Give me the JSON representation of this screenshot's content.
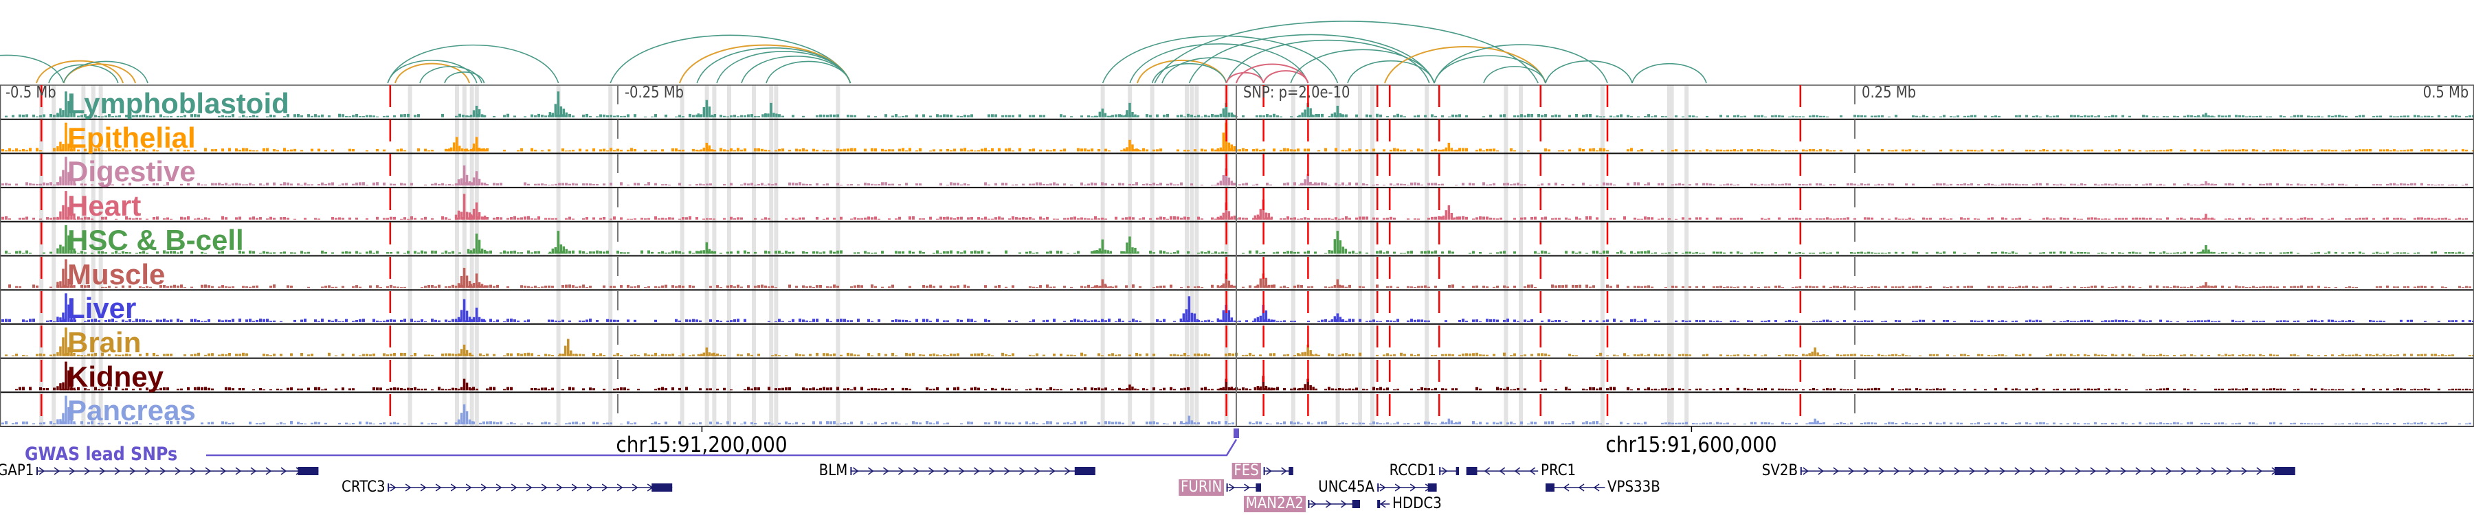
{
  "colors": {
    "arc_teal": "#4a9a88",
    "arc_orange": "#e0a030",
    "arc_pink": "#d9667a",
    "highlight_column": "#e3e3e3",
    "lead_snp_line": "#ff0000",
    "gwas": "#6655cc",
    "gene": "#1a1a6e",
    "gene_highlight": "#c487a8"
  },
  "axis": {
    "labels": [
      {
        "text": "-0.5 Mb",
        "kb": -500
      },
      {
        "text": "-0.25 Mb",
        "kb": -250
      },
      {
        "text": "SNP: p=2.0e-10",
        "kb": 0
      },
      {
        "text": "0.25 Mb",
        "kb": 250
      },
      {
        "text": "0.5 Mb",
        "kb": 500
      }
    ],
    "chrom_ticks": [
      {
        "text": "chr15:91,200,000",
        "kb": -216
      },
      {
        "text": "chr15:91,600,000",
        "kb": 184
      }
    ]
  },
  "gwas": {
    "label": "GWAS lead SNPs",
    "snp_kb": 0
  },
  "lead_snp_lines_kb": [
    -483,
    -342,
    -4,
    11,
    29,
    57,
    62,
    82,
    123,
    150,
    228
  ],
  "highlight_columns_kb": [
    -483,
    -478,
    -466,
    -462,
    -459,
    -334,
    -315,
    -312,
    -309,
    -307,
    -274,
    -253,
    -224,
    -214,
    -211,
    -205,
    -195,
    -188,
    -186,
    -161,
    -54,
    -43,
    -34,
    -20,
    -18,
    -16,
    -4,
    23,
    41,
    50,
    55,
    77,
    109,
    115,
    148,
    175,
    176,
    182
  ],
  "tracks": [
    {
      "name": "Lymphoblastoid",
      "color": "#4a9a88",
      "peaks": [
        [
          -473,
          0.9
        ],
        [
          -307,
          0.4
        ],
        [
          -274,
          0.9
        ],
        [
          -214,
          0.6
        ],
        [
          -188,
          0.5
        ],
        [
          -54,
          0.3
        ],
        [
          -43,
          0.5
        ],
        [
          -4,
          0.5
        ],
        [
          29,
          0.5
        ],
        [
          41,
          0.4
        ],
        [
          392,
          0.15
        ]
      ]
    },
    {
      "name": "Epithelial",
      "color": "#ff9900",
      "peaks": [
        [
          -473,
          1.0
        ],
        [
          -315,
          0.5
        ],
        [
          -307,
          0.5
        ],
        [
          -214,
          0.3
        ],
        [
          -43,
          0.4
        ],
        [
          -4,
          1.0
        ],
        [
          86,
          0.3
        ]
      ]
    },
    {
      "name": "Digestive",
      "color": "#c987a8",
      "peaks": [
        [
          -473,
          1.0
        ],
        [
          -312,
          0.7
        ],
        [
          -307,
          0.5
        ],
        [
          -4,
          0.6
        ],
        [
          29,
          0.4
        ],
        [
          392,
          0.15
        ]
      ]
    },
    {
      "name": "Heart",
      "color": "#d9667a",
      "peaks": [
        [
          -473,
          1.0
        ],
        [
          -312,
          0.9
        ],
        [
          -307,
          0.6
        ],
        [
          -4,
          0.6
        ],
        [
          11,
          0.7
        ],
        [
          86,
          0.5
        ],
        [
          392,
          0.2
        ]
      ]
    },
    {
      "name": "HSC & B-cell",
      "color": "#4e9e4e",
      "peaks": [
        [
          -473,
          1.0
        ],
        [
          -307,
          0.7
        ],
        [
          -274,
          0.8
        ],
        [
          -214,
          0.4
        ],
        [
          -54,
          0.5
        ],
        [
          -43,
          0.6
        ],
        [
          41,
          0.8
        ],
        [
          392,
          0.3
        ]
      ]
    },
    {
      "name": "Muscle",
      "color": "#c0605a",
      "peaks": [
        [
          -473,
          1.0
        ],
        [
          -312,
          0.7
        ],
        [
          -307,
          0.5
        ],
        [
          -54,
          0.3
        ],
        [
          -4,
          0.5
        ],
        [
          11,
          0.5
        ],
        [
          41,
          0.3
        ],
        [
          392,
          0.2
        ]
      ]
    },
    {
      "name": "Liver",
      "color": "#4444dd",
      "peaks": [
        [
          -473,
          1.0
        ],
        [
          -312,
          0.8
        ],
        [
          -307,
          0.5
        ],
        [
          -19,
          0.9
        ],
        [
          -4,
          0.6
        ],
        [
          11,
          0.6
        ],
        [
          41,
          0.3
        ]
      ]
    },
    {
      "name": "Brain",
      "color": "#c8922a",
      "peaks": [
        [
          -473,
          1.0
        ],
        [
          -312,
          0.4
        ],
        [
          -270,
          0.6
        ],
        [
          -214,
          0.3
        ],
        [
          29,
          0.4
        ],
        [
          234,
          0.3
        ]
      ]
    },
    {
      "name": "Kidney",
      "color": "#6b0000",
      "peaks": [
        [
          -473,
          1.0
        ],
        [
          -312,
          0.4
        ],
        [
          -43,
          0.2
        ],
        [
          -4,
          0.4
        ],
        [
          11,
          0.5
        ],
        [
          29,
          0.4
        ]
      ]
    },
    {
      "name": "Pancreas",
      "color": "#88a0e0",
      "peaks": [
        [
          -473,
          1.0
        ],
        [
          -312,
          0.7
        ],
        [
          -19,
          0.3
        ],
        [
          86,
          0.2
        ],
        [
          234,
          0.2
        ]
      ]
    }
  ],
  "arcs": [
    [
      -520,
      -474,
      "teal"
    ],
    [
      -485,
      -450,
      "orange"
    ],
    [
      -480,
      -452,
      "teal"
    ],
    [
      -474,
      -445,
      "orange"
    ],
    [
      -474,
      -440,
      "teal"
    ],
    [
      -343,
      -274,
      "teal"
    ],
    [
      -343,
      -307,
      "teal"
    ],
    [
      -340,
      -310,
      "orange"
    ],
    [
      -330,
      -305,
      "teal"
    ],
    [
      -320,
      -304,
      "teal"
    ],
    [
      -253,
      -156,
      "teal"
    ],
    [
      -225,
      -156,
      "orange"
    ],
    [
      -218,
      -156,
      "teal"
    ],
    [
      -210,
      -156,
      "teal"
    ],
    [
      -200,
      -156,
      "teal"
    ],
    [
      -190,
      -156,
      "teal"
    ],
    [
      -54,
      41,
      "teal"
    ],
    [
      -43,
      29,
      "teal"
    ],
    [
      -40,
      -4,
      "orange"
    ],
    [
      -30,
      11,
      "teal"
    ],
    [
      -34,
      -4,
      "teal"
    ],
    [
      -4,
      78,
      "teal"
    ],
    [
      -19,
      80,
      "teal"
    ],
    [
      -33,
      122,
      "teal"
    ],
    [
      -4,
      11,
      "pink"
    ],
    [
      11,
      29,
      "pink"
    ],
    [
      0,
      29,
      "pink"
    ],
    [
      22,
      80,
      "teal"
    ],
    [
      45,
      80,
      "teal"
    ],
    [
      60,
      125,
      "orange"
    ],
    [
      80,
      125,
      "teal"
    ],
    [
      80,
      150,
      "teal"
    ],
    [
      100,
      125,
      "teal"
    ],
    [
      125,
      160,
      "teal"
    ],
    [
      160,
      190,
      "teal"
    ]
  ],
  "genes": [
    {
      "name": "GAP1",
      "start": -485,
      "end": -371,
      "row": 0,
      "strand": "+",
      "label_side": "left",
      "highlight": false
    },
    {
      "name": "CRTC3",
      "start": -343,
      "end": -228,
      "row": 1,
      "strand": "+",
      "label_side": "left",
      "highlight": false
    },
    {
      "name": "BLM",
      "start": -156,
      "end": -57,
      "row": 0,
      "strand": "+",
      "label_side": "left",
      "highlight": false
    },
    {
      "name": "FES",
      "start": 11,
      "end": 23,
      "row": 0,
      "strand": "+",
      "label_side": "left",
      "highlight": true
    },
    {
      "name": "FURIN",
      "start": -4,
      "end": 10,
      "row": 1,
      "strand": "+",
      "label_side": "left",
      "highlight": true
    },
    {
      "name": "MAN2A2",
      "start": 29,
      "end": 50,
      "row": 2,
      "strand": "+",
      "label_side": "left",
      "highlight": true
    },
    {
      "name": "UNC45A",
      "start": 57,
      "end": 81,
      "row": 1,
      "strand": "+",
      "label_side": "left",
      "highlight": false
    },
    {
      "name": "HDDC3",
      "start": 57,
      "end": 62,
      "row": 2,
      "strand": "-",
      "label_side": "right",
      "highlight": false
    },
    {
      "name": "RCCD1",
      "start": 82,
      "end": 90,
      "row": 0,
      "strand": "+",
      "label_side": "left",
      "highlight": false
    },
    {
      "name": "PRC1",
      "start": 93,
      "end": 122,
      "row": 0,
      "strand": "-",
      "label_side": "right",
      "highlight": false
    },
    {
      "name": "VPS33B",
      "start": 125,
      "end": 149,
      "row": 1,
      "strand": "-",
      "label_side": "right",
      "highlight": false
    },
    {
      "name": "SV2B",
      "start": 228,
      "end": 428,
      "row": 0,
      "strand": "+",
      "label_side": "left",
      "highlight": false
    }
  ]
}
